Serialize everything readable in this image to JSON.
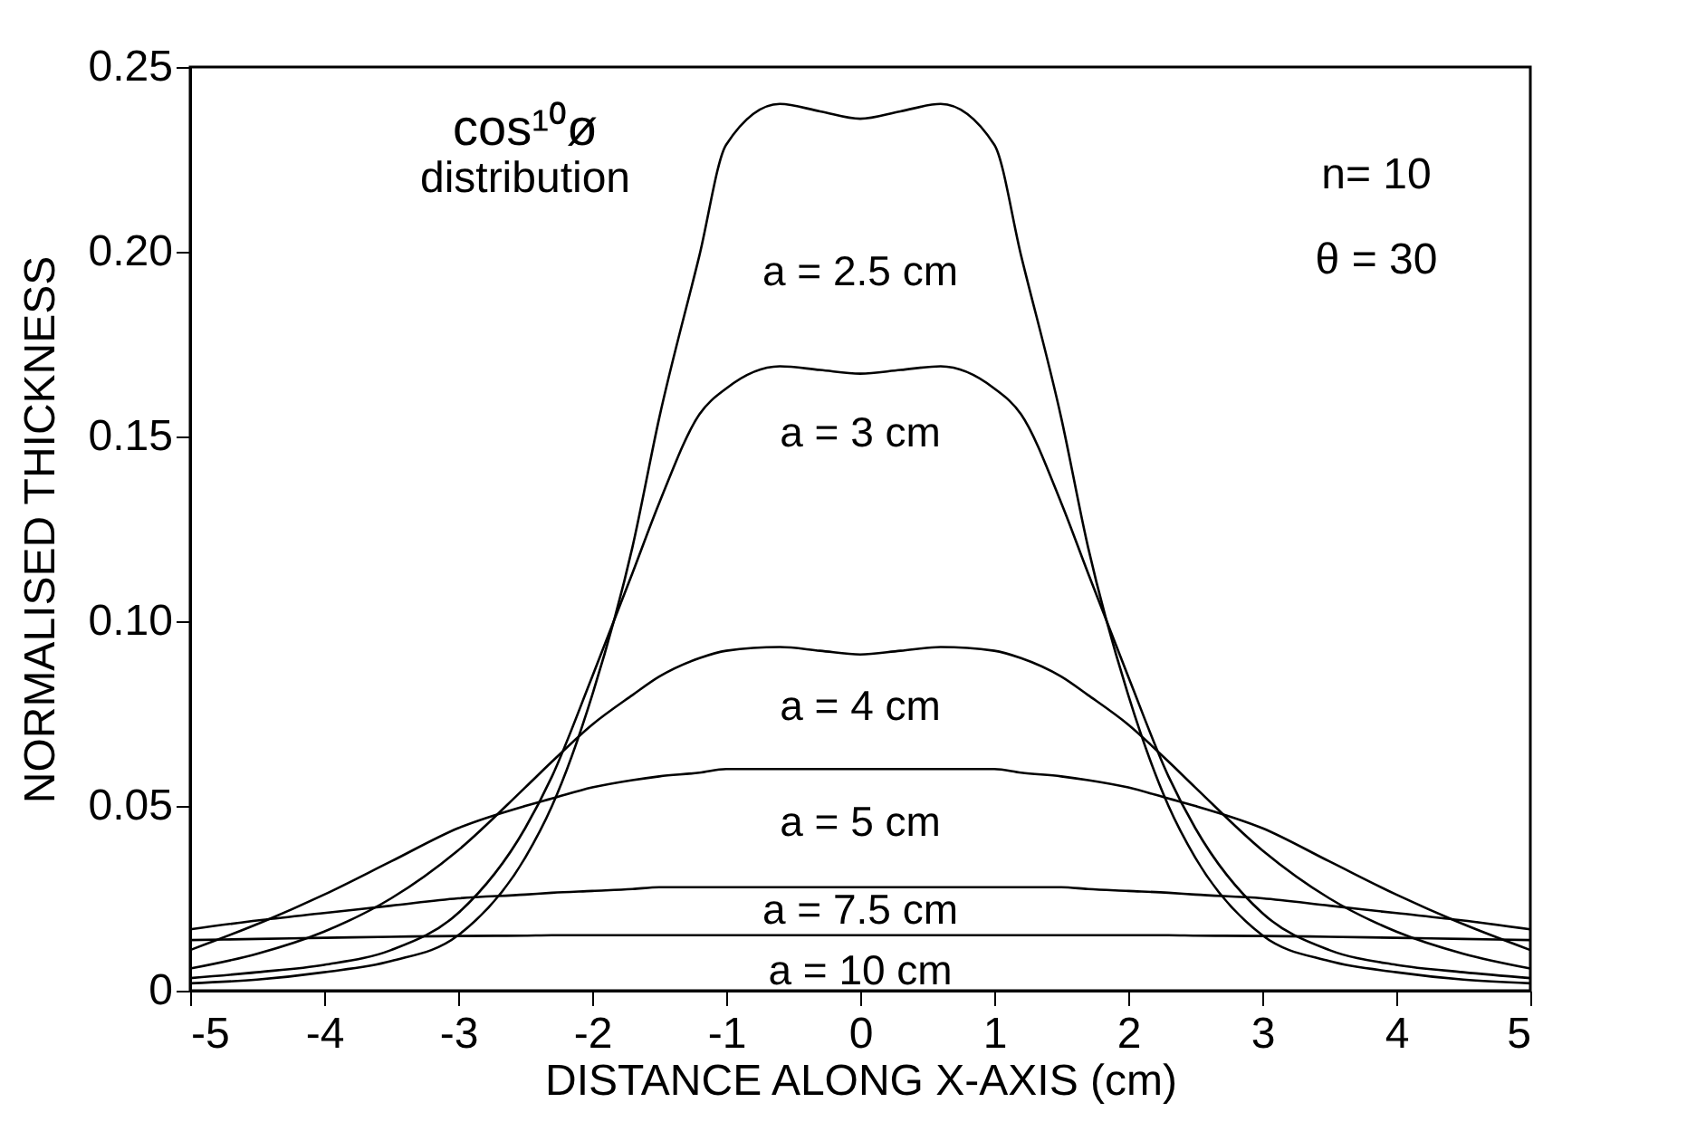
{
  "chart_data": {
    "type": "line",
    "xlabel": "DISTANCE ALONG X-AXIS  (cm)",
    "ylabel": "NORMALISED  THICKNESS",
    "x": [
      -5,
      -4.5,
      -4,
      -3.5,
      -3,
      -2.5,
      -2.3,
      -2,
      -1.7,
      -1.5,
      -1.2,
      -1,
      -0.6,
      -0.3,
      0,
      0.3,
      0.6,
      1,
      1.2,
      1.5,
      1.7,
      2,
      2.3,
      2.5,
      3,
      3.5,
      4,
      4.5,
      5
    ],
    "series": [
      {
        "name": "a = 2.5 cm",
        "color": "#000000",
        "values": [
          0.002,
          0.003,
          0.005,
          0.008,
          0.015,
          0.036,
          0.05,
          0.08,
          0.12,
          0.155,
          0.199,
          0.229,
          0.24,
          0.238,
          0.236,
          0.238,
          0.24,
          0.229,
          0.199,
          0.155,
          0.12,
          0.08,
          0.05,
          0.036,
          0.015,
          0.008,
          0.005,
          0.003,
          0.002
        ]
      },
      {
        "name": "a = 3 cm",
        "color": "#000000",
        "values": [
          0.0034,
          0.005,
          0.007,
          0.011,
          0.021,
          0.044,
          0.058,
          0.085,
          0.113,
          0.132,
          0.156,
          0.163,
          0.169,
          0.168,
          0.167,
          0.168,
          0.169,
          0.163,
          0.156,
          0.132,
          0.113,
          0.085,
          0.058,
          0.044,
          0.021,
          0.011,
          0.007,
          0.005,
          0.0034
        ]
      },
      {
        "name": "a = 4 cm",
        "color": "#000000",
        "values": [
          0.006,
          0.01,
          0.016,
          0.025,
          0.038,
          0.055,
          0.062,
          0.072,
          0.08,
          0.085,
          0.09,
          0.092,
          0.093,
          0.092,
          0.091,
          0.092,
          0.093,
          0.092,
          0.09,
          0.085,
          0.08,
          0.072,
          0.062,
          0.055,
          0.038,
          0.025,
          0.016,
          0.01,
          0.006
        ]
      },
      {
        "name": "a = 5 cm",
        "color": "#000000",
        "values": [
          0.011,
          0.018,
          0.026,
          0.035,
          0.044,
          0.05,
          0.052,
          0.055,
          0.057,
          0.058,
          0.059,
          0.06,
          0.06,
          0.06,
          0.06,
          0.06,
          0.06,
          0.06,
          0.059,
          0.058,
          0.057,
          0.055,
          0.052,
          0.05,
          0.044,
          0.035,
          0.026,
          0.018,
          0.011
        ]
      },
      {
        "name": "a = 7.5 cm",
        "color": "#000000",
        "values": [
          0.0166,
          0.019,
          0.021,
          0.023,
          0.025,
          0.026,
          0.0265,
          0.027,
          0.0275,
          0.028,
          0.028,
          0.028,
          0.028,
          0.028,
          0.028,
          0.028,
          0.028,
          0.028,
          0.028,
          0.028,
          0.0275,
          0.027,
          0.0265,
          0.026,
          0.025,
          0.023,
          0.021,
          0.019,
          0.0166
        ]
      },
      {
        "name": "a = 10 cm",
        "color": "#000000",
        "values": [
          0.0137,
          0.014,
          0.0143,
          0.0146,
          0.0148,
          0.0149,
          0.015,
          0.015,
          0.015,
          0.015,
          0.015,
          0.015,
          0.015,
          0.015,
          0.015,
          0.015,
          0.015,
          0.015,
          0.015,
          0.015,
          0.015,
          0.015,
          0.015,
          0.0149,
          0.0148,
          0.0146,
          0.0143,
          0.014,
          0.0137
        ]
      }
    ],
    "annotations": [
      "cos¹⁰ø",
      "distribution",
      "n= 10",
      "θ = 30"
    ],
    "xlim": [
      -5,
      5
    ],
    "xticks": [
      {
        "value": -5,
        "label": "-5"
      },
      {
        "value": -4,
        "label": "-4"
      },
      {
        "value": -3,
        "label": "-3"
      },
      {
        "value": -2,
        "label": "-2"
      },
      {
        "value": -1,
        "label": "-1"
      },
      0,
      1,
      2,
      3,
      4,
      5
    ],
    "ylim": [
      0,
      0.25
    ],
    "yticks": [
      0,
      0.05,
      {
        "value": 0.1,
        "label": "0.10"
      },
      0.15,
      {
        "value": 0.2,
        "label": "0.20"
      },
      0.25
    ],
    "grid": false,
    "legend": false,
    "marker": "none",
    "line_style": "solid"
  }
}
